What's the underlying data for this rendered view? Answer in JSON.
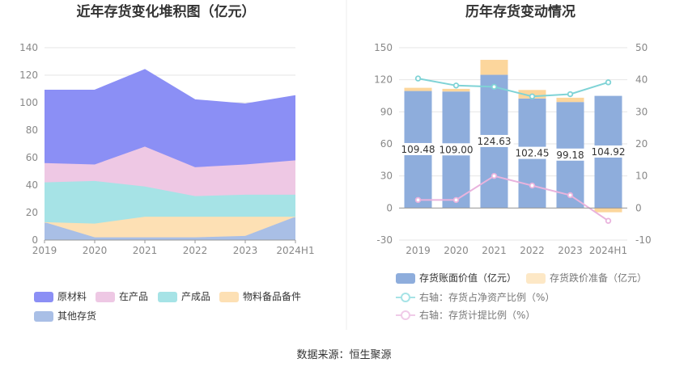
{
  "left_chart": {
    "title": "近年存货变化堆积图（亿元）",
    "categories": [
      "2019",
      "2020",
      "2021",
      "2022",
      "2023",
      "2024H1"
    ],
    "y_ticks": [
      "0",
      "20",
      "40",
      "60",
      "80",
      "100",
      "120",
      "140"
    ],
    "legend": [
      "原材料",
      "在产品",
      "产成品",
      "物料备品备件",
      "其他存货"
    ]
  },
  "right_chart": {
    "title": "历年存货变动情况",
    "categories": [
      "2019",
      "2020",
      "2021",
      "2022",
      "2023",
      "2024H1"
    ],
    "y_left_ticks": [
      "150",
      "120",
      "90",
      "60",
      "30",
      "0",
      "-30"
    ],
    "y_right_ticks": [
      "50",
      "40",
      "30",
      "20",
      "10",
      "0",
      "-10"
    ],
    "bar_labels": [
      "109.48",
      "109.00",
      "124.63",
      "102.45",
      "99.18",
      "104.92"
    ],
    "legend": {
      "book_value": "存货账面价值（亿元）",
      "impairment": "存货跌价准备（亿元）",
      "ratio_assets": "右轴：存货占净资产比例（%）",
      "ratio_provision": "右轴：存货计提比例（%）"
    }
  },
  "source": "数据来源：恒生聚源",
  "colors": {
    "raw": "#8b8ff5",
    "wip": "#eec8e4",
    "finished": "#a6e3e6",
    "spares": "#fde0b4",
    "other": "#a9bfe6",
    "bar_blue": "#8eaddc",
    "bar_orange": "#fcd69c",
    "line_teal": "#7fd3d6",
    "line_pink": "#e9b3dd"
  },
  "chart_data": [
    {
      "type": "area",
      "stacked": true,
      "title": "近年存货变化堆积图（亿元）",
      "categories": [
        "2019",
        "2020",
        "2021",
        "2022",
        "2023",
        "2024H1"
      ],
      "ylim": [
        0,
        140
      ],
      "series": [
        {
          "name": "其他存货",
          "values": [
            13,
            2,
            2,
            2,
            3,
            17
          ]
        },
        {
          "name": "物料备品备件",
          "values": [
            0,
            10,
            15,
            15,
            14,
            0
          ]
        },
        {
          "name": "产成品",
          "values": [
            29,
            31,
            22,
            15,
            16,
            16
          ]
        },
        {
          "name": "在产品",
          "values": [
            14,
            12,
            29,
            21,
            22,
            25
          ]
        },
        {
          "name": "原材料",
          "values": [
            53,
            54,
            56,
            49,
            44,
            47
          ]
        }
      ]
    },
    {
      "type": "bar+line",
      "title": "历年存货变动情况",
      "categories": [
        "2019",
        "2020",
        "2021",
        "2022",
        "2023",
        "2024H1"
      ],
      "ylim_left": [
        -30,
        150
      ],
      "ylim_right": [
        -10,
        50
      ],
      "series": [
        {
          "name": "存货账面价值（亿元）",
          "axis": "left",
          "type": "bar",
          "values": [
            109.48,
            109.0,
            124.63,
            102.45,
            99.18,
            104.92
          ]
        },
        {
          "name": "存货跌价准备（亿元）",
          "axis": "left",
          "type": "bar",
          "values": [
            3.0,
            2.5,
            14.0,
            8.0,
            4.0,
            -4.0
          ]
        },
        {
          "name": "右轴：存货占净资产比例（%）",
          "axis": "right",
          "type": "line",
          "values": [
            40.4,
            38.2,
            37.8,
            34.8,
            35.5,
            39.2
          ]
        },
        {
          "name": "右轴：存货计提比例（%）",
          "axis": "right",
          "type": "line",
          "values": [
            2.5,
            2.5,
            10.0,
            7.0,
            4.0,
            -4.0
          ]
        }
      ]
    }
  ]
}
